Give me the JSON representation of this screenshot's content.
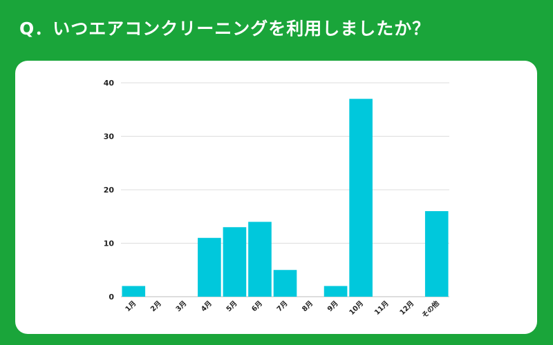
{
  "header": {
    "title": "Q．いつエアコンクリーニングを利用しましたか？"
  },
  "colors": {
    "background": "#1aa53a",
    "card": "#ffffff",
    "bar": "#00c8dc",
    "grid": "#dddddd"
  },
  "chart_data": {
    "type": "bar",
    "categories": [
      "1月",
      "2月",
      "3月",
      "4月",
      "5月",
      "6月",
      "7月",
      "8月",
      "9月",
      "10月",
      "11月",
      "12月",
      "その他"
    ],
    "values": [
      2,
      0,
      0,
      11,
      13,
      14,
      5,
      0,
      2,
      37,
      0,
      0,
      16
    ],
    "ylim": [
      0,
      40
    ],
    "yticks": [
      0,
      10,
      20,
      30,
      40
    ],
    "grid": true,
    "legend": "none"
  }
}
